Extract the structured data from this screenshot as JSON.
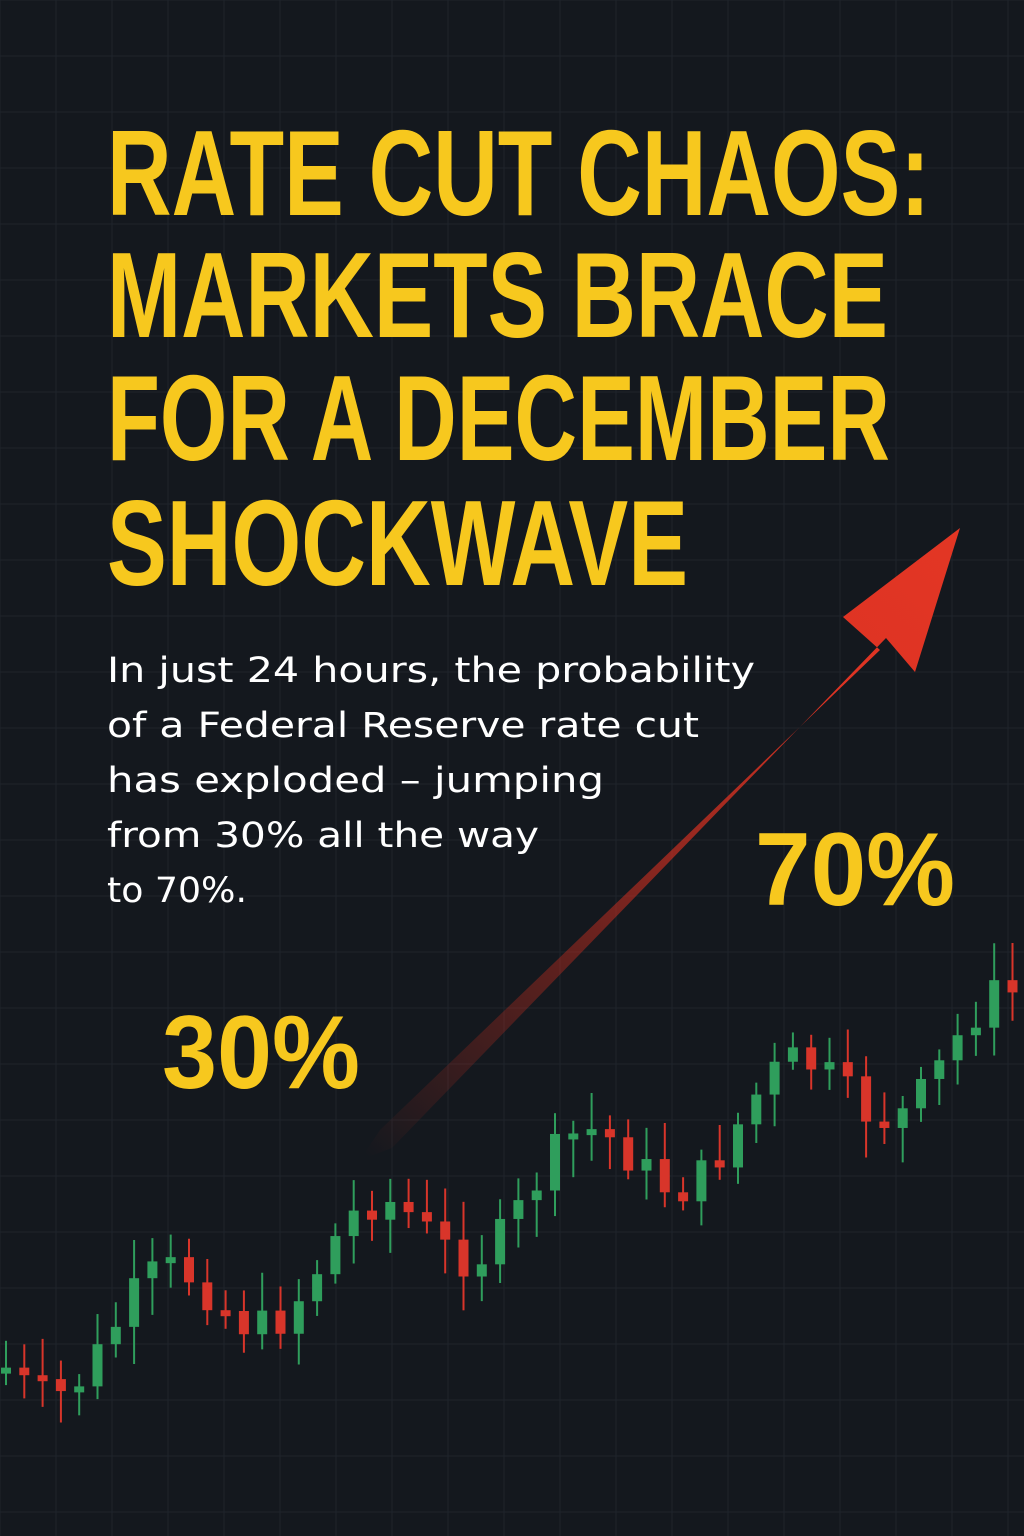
{
  "headline": {
    "lines": [
      "RATE CUT CHAOS:",
      "MARKETS BRACE",
      "FOR A DECEMBER",
      "SHOCKWAVE"
    ]
  },
  "body": {
    "lines": [
      "In just 24 hours, the probability",
      "of a Federal Reserve rate cut",
      "has exploded – jumping",
      "from 30% all the way",
      "to 70%."
    ]
  },
  "labels": {
    "start": "30%",
    "end": "70%"
  }
}
